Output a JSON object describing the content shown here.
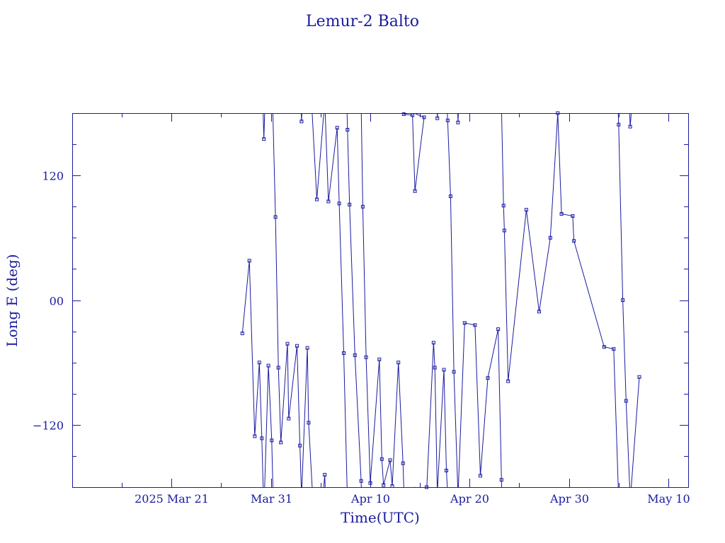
{
  "chart_data": {
    "type": "line",
    "title": "Lemur-2 Balto",
    "xlabel": "Time(UTC)",
    "ylabel": "Long E (deg)",
    "x_type": "date",
    "xlim": [
      "2025-03-11",
      "2025-05-12"
    ],
    "ylim": [
      -180,
      180
    ],
    "x_tick_labels": [
      {
        "date": "2025-03-21",
        "label": "2025 Mar 21"
      },
      {
        "date": "2025-03-31",
        "label": "Mar 31"
      },
      {
        "date": "2025-04-10",
        "label": "Apr 10"
      },
      {
        "date": "2025-04-20",
        "label": "Apr 20"
      },
      {
        "date": "2025-04-30",
        "label": "Apr 30"
      },
      {
        "date": "2025-05-10",
        "label": "May 10"
      }
    ],
    "x_minor_ticks": [
      "2025-03-16",
      "2025-03-26",
      "2025-04-05",
      "2025-04-15",
      "2025-04-25",
      "2025-05-05"
    ],
    "y_ticks": [
      {
        "value": 120,
        "label": "120"
      },
      {
        "value": 0,
        "label": "00"
      },
      {
        "value": -120,
        "label": "−120"
      }
    ],
    "y_minor_ticks": [
      -150,
      -90,
      -60,
      -30,
      30,
      60,
      90,
      150
    ],
    "grid": false,
    "series": [
      {
        "color": "#1a1aa0",
        "marker": "square",
        "wrap_longitude": true,
        "points": [
          {
            "t": "2025-03-28T03:00",
            "y": -32
          },
          {
            "t": "2025-03-28T20:00",
            "y": 38
          },
          {
            "t": "2025-03-29T09:00",
            "y": -131
          },
          {
            "t": "2025-03-29T20:00",
            "y": -60
          },
          {
            "t": "2025-03-30T02:00",
            "y": -133
          },
          {
            "t": "2025-03-30T07:00",
            "y": 155
          },
          {
            "t": "2025-03-30T18:00",
            "y": -63
          },
          {
            "t": "2025-03-31T02:00",
            "y": -135
          },
          {
            "t": "2025-03-31T11:00",
            "y": 80
          },
          {
            "t": "2025-03-31T18:00",
            "y": -65
          },
          {
            "t": "2025-04-01T00:00",
            "y": -137
          },
          {
            "t": "2025-04-01T16:00",
            "y": -42
          },
          {
            "t": "2025-04-01T19:00",
            "y": -114
          },
          {
            "t": "2025-04-02T15:00",
            "y": -44
          },
          {
            "t": "2025-04-02T22:00",
            "y": -140
          },
          {
            "t": "2025-04-03T02:00",
            "y": 172
          },
          {
            "t": "2025-04-03T16:00",
            "y": -46
          },
          {
            "t": "2025-04-03T19:00",
            "y": -118
          },
          {
            "t": "2025-04-04T15:00",
            "y": 97
          },
          {
            "t": "2025-04-05T10:00",
            "y": -168
          },
          {
            "t": "2025-04-05T19:00",
            "y": 95
          },
          {
            "t": "2025-04-06T16:00",
            "y": 166
          },
          {
            "t": "2025-04-06T21:00",
            "y": 93
          },
          {
            "t": "2025-04-07T08:00",
            "y": -51
          },
          {
            "t": "2025-04-07T17:00",
            "y": 164
          },
          {
            "t": "2025-04-07T22:00",
            "y": 92
          },
          {
            "t": "2025-04-08T11:00",
            "y": -53
          },
          {
            "t": "2025-04-09T02:00",
            "y": -174
          },
          {
            "t": "2025-04-09T06:00",
            "y": 90
          },
          {
            "t": "2025-04-09T14:00",
            "y": -55
          },
          {
            "t": "2025-04-10T00:00",
            "y": -176
          },
          {
            "t": "2025-04-10T22:00",
            "y": -57
          },
          {
            "t": "2025-04-11T04:00",
            "y": -153
          },
          {
            "t": "2025-04-11T08:00",
            "y": -178
          },
          {
            "t": "2025-04-12T00:00",
            "y": -154
          },
          {
            "t": "2025-04-12T05:00",
            "y": -179
          },
          {
            "t": "2025-04-12T20:00",
            "y": -60
          },
          {
            "t": "2025-04-13T07:00",
            "y": -157
          },
          {
            "t": "2025-04-13T09:00",
            "y": 179
          },
          {
            "t": "2025-04-14T06:00",
            "y": 178
          },
          {
            "t": "2025-04-14T12:00",
            "y": 105
          },
          {
            "t": "2025-04-15T10:00",
            "y": 176
          },
          {
            "t": "2025-04-15T16:00",
            "y": -185
          },
          {
            "t": "2025-04-16T09:00",
            "y": -41
          },
          {
            "t": "2025-04-16T12:00",
            "y": -65
          },
          {
            "t": "2025-04-16T18:00",
            "y": 175
          },
          {
            "t": "2025-04-17T10:00",
            "y": -67
          },
          {
            "t": "2025-04-17T16:00",
            "y": -164
          },
          {
            "t": "2025-04-17T19:00",
            "y": 173
          },
          {
            "t": "2025-04-18T02:00",
            "y": 100
          },
          {
            "t": "2025-04-18T10:00",
            "y": -69
          },
          {
            "t": "2025-04-18T20:00",
            "y": 171
          },
          {
            "t": "2025-04-19T12:00",
            "y": -22
          },
          {
            "t": "2025-04-20T13:00",
            "y": -24
          },
          {
            "t": "2025-04-21T02:00",
            "y": -169
          },
          {
            "t": "2025-04-21T20:00",
            "y": -75
          },
          {
            "t": "2025-04-22T21:00",
            "y": -28
          },
          {
            "t": "2025-04-23T05:00",
            "y": -173
          },
          {
            "t": "2025-04-23T10:00",
            "y": 91
          },
          {
            "t": "2025-04-23T12:00",
            "y": 67
          },
          {
            "t": "2025-04-23T21:00",
            "y": -78
          },
          {
            "t": "2025-04-25T17:00",
            "y": 87
          },
          {
            "t": "2025-04-27T00:00",
            "y": -11
          },
          {
            "t": "2025-04-28T03:00",
            "y": 60
          },
          {
            "t": "2025-04-28T21:00",
            "y": 180
          },
          {
            "t": "2025-04-29T06:00",
            "y": 83
          },
          {
            "t": "2025-04-30T09:00",
            "y": 81
          },
          {
            "t": "2025-04-30T12:00",
            "y": 57
          },
          {
            "t": "2025-05-03T13:00",
            "y": -45
          },
          {
            "t": "2025-05-04T12:00",
            "y": -47
          },
          {
            "t": "2025-05-05T00:00",
            "y": 169
          },
          {
            "t": "2025-05-05T10:00",
            "y": 0
          },
          {
            "t": "2025-05-05T18:00",
            "y": -97
          },
          {
            "t": "2025-05-06T04:00",
            "y": 167
          },
          {
            "t": "2025-05-07T02:00",
            "y": -74
          }
        ]
      }
    ]
  }
}
